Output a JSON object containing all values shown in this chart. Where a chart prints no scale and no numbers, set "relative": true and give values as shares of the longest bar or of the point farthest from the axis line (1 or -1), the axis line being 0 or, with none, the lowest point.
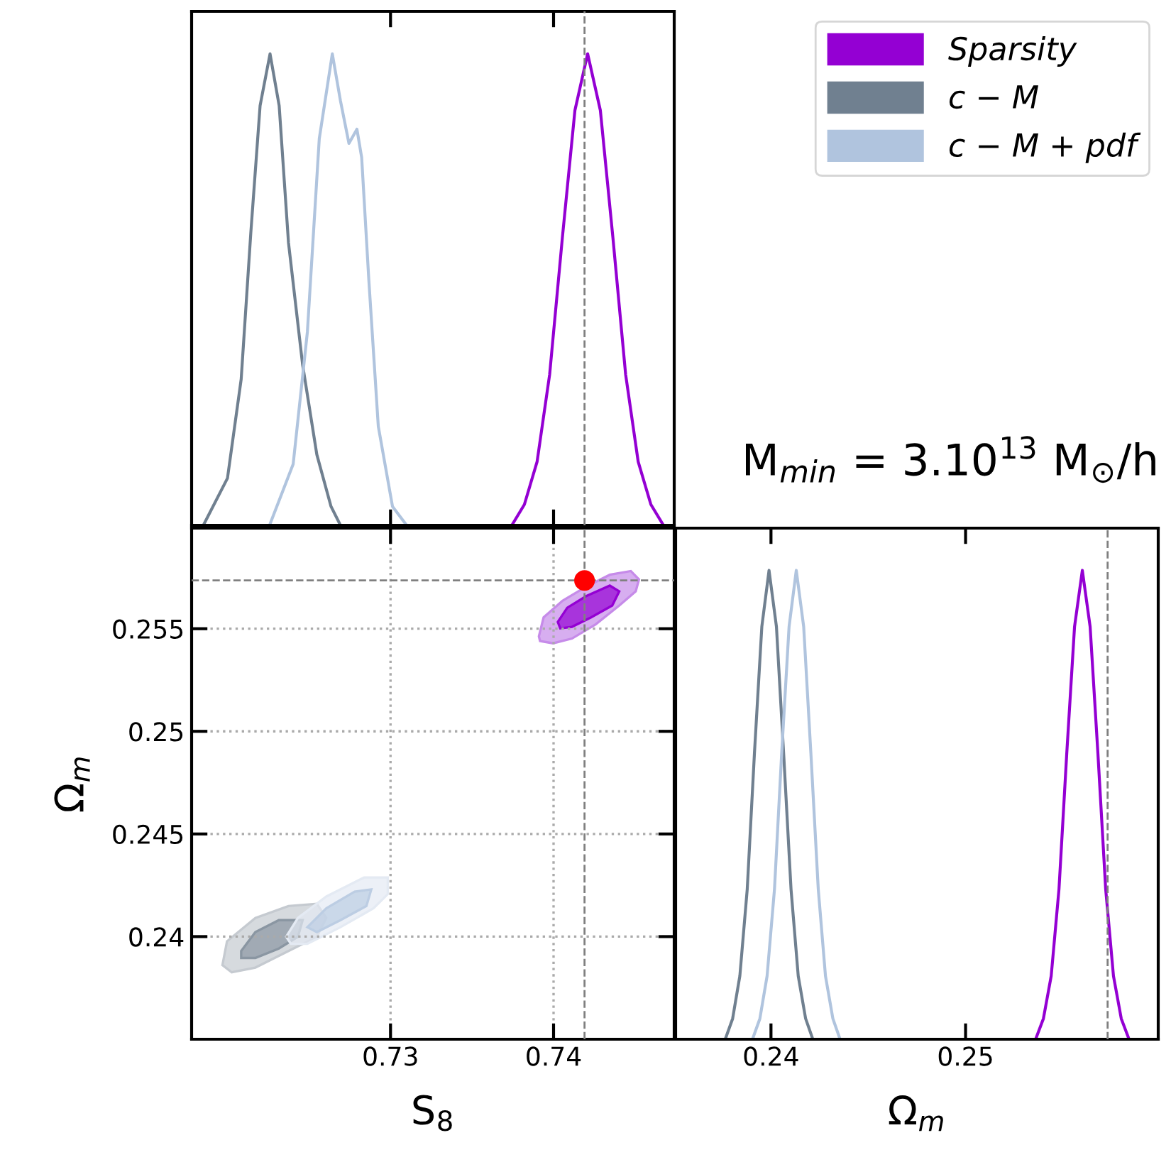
{
  "chart_data": [
    {
      "type": "line",
      "relative": true,
      "xlim": [
        0.7178,
        0.7474
      ],
      "xticks": [
        0.73,
        0.74
      ],
      "tick_labels": false,
      "legend": "top right",
      "annotations": [
        "M$_{min}$ = 3.10$^{13}$ M$_{⊙}$/h"
      ],
      "ref_lines": [
        {
          "axis": "x",
          "value": 0.7419,
          "color": "#808080",
          "line_style": "dashed"
        }
      ],
      "series": [
        {
          "name": "Sparsity",
          "color": "#9400d3",
          "x": [
            0.73744,
            0.73821,
            0.73899,
            0.73976,
            0.74054,
            0.74131,
            0.74209,
            0.74287,
            0.74364,
            0.74442,
            0.74519,
            0.74597,
            0.74674
          ],
          "values": [
            0,
            0.044,
            0.135,
            0.32,
            0.61,
            0.88,
            1,
            0.88,
            0.61,
            0.32,
            0.135,
            0.044,
            0
          ]
        },
        {
          "name": "c − M",
          "color": "#708090",
          "x": [
            0.71852,
            0.72,
            0.72084,
            0.72143,
            0.722,
            0.72261,
            0.72317,
            0.72374,
            0.72461,
            0.72548,
            0.72635,
            0.72693
          ],
          "values": [
            0,
            0.1,
            0.31,
            0.62,
            0.89,
            1,
            0.89,
            0.6,
            0.34,
            0.15,
            0.04,
            0
          ]
        },
        {
          "name": "c − M + pdf",
          "color": "#b0c4de",
          "x": [
            0.72258,
            0.72403,
            0.7249,
            0.72563,
            0.72643,
            0.72693,
            0.72745,
            0.72794,
            0.72823,
            0.72867,
            0.72925,
            0.73012,
            0.73099
          ],
          "values": [
            0,
            0.13,
            0.41,
            0.82,
            1,
            0.9,
            0.81,
            0.84,
            0.78,
            0.52,
            0.21,
            0.04,
            0
          ]
        }
      ]
    },
    {
      "type": "area",
      "xlim": [
        0.7178,
        0.7474
      ],
      "xticks": [
        0.73,
        0.74
      ],
      "ylim": [
        0.235,
        0.2599
      ],
      "yticks": [
        0.24,
        0.245,
        0.25,
        0.255
      ],
      "xlabel": "S$_{8}$",
      "ylabel": "Ω$_{m}$",
      "grid": true,
      "ref_lines": [
        {
          "axis": "x",
          "value": 0.7419,
          "color": "#808080",
          "line_style": "dashed"
        },
        {
          "axis": "y",
          "value": 0.25735,
          "color": "#808080",
          "line_style": "dashed"
        }
      ],
      "series": [
        {
          "color": "#c68be9",
          "x": [
            0.7391,
            0.73939,
            0.74055,
            0.742,
            0.74345,
            0.74474,
            0.74524,
            0.74504,
            0.74403,
            0.74258,
            0.74113,
            0.73997,
            0.73917
          ],
          "values": [
            0.25463,
            0.25555,
            0.25636,
            0.25705,
            0.25763,
            0.25781,
            0.2574,
            0.25682,
            0.25613,
            0.25521,
            0.25452,
            0.25429,
            0.2544
          ]
        },
        {
          "color": "#9400d3",
          "x": [
            0.74026,
            0.74084,
            0.742,
            0.74345,
            0.74403,
            0.7436,
            0.7423,
            0.74113,
            0.74041
          ],
          "values": [
            0.25533,
            0.25602,
            0.25659,
            0.2571,
            0.25682,
            0.25613,
            0.25555,
            0.25509,
            0.25502
          ]
        },
        {
          "color": "#c5cad0",
          "x": [
            0.71969,
            0.71997,
            0.72171,
            0.72374,
            0.72548,
            0.72606,
            0.72548,
            0.72374,
            0.72171,
            0.72026
          ],
          "values": [
            0.23861,
            0.23977,
            0.24091,
            0.24149,
            0.2416,
            0.24091,
            0.23999,
            0.2393,
            0.23849,
            0.23826
          ]
        },
        {
          "color": "#8a96a2",
          "x": [
            0.72084,
            0.72171,
            0.72315,
            0.72461,
            0.72432,
            0.72315,
            0.72171,
            0.72084
          ],
          "values": [
            0.2393,
            0.24022,
            0.2408,
            0.2408,
            0.23999,
            0.23942,
            0.23896,
            0.23896
          ]
        },
        {
          "color": "#e4eaf3",
          "x": [
            0.7236,
            0.72432,
            0.72606,
            0.72838,
            0.72983,
            0.72983,
            0.72896,
            0.72693,
            0.7249,
            0.72389
          ],
          "values": [
            0.23999,
            0.24091,
            0.24195,
            0.24288,
            0.24288,
            0.24207,
            0.24138,
            0.24046,
            0.23965,
            0.23965
          ]
        },
        {
          "color": "#bccde3",
          "x": [
            0.7249,
            0.72606,
            0.7278,
            0.72882,
            0.72852,
            0.72693,
            0.72548
          ],
          "values": [
            0.24046,
            0.24138,
            0.24219,
            0.2423,
            0.24149,
            0.2408,
            0.24022
          ]
        },
        {
          "type": "scatter",
          "color": "#ff0000",
          "marker": "circle",
          "x": [
            0.7419
          ],
          "values": [
            0.25735
          ]
        }
      ]
    },
    {
      "type": "line",
      "relative": true,
      "xlim": [
        0.2351,
        0.2599
      ],
      "xticks": [
        0.24,
        0.25
      ],
      "xlabel": "Ω$_{m}$",
      "tick_labels": "x",
      "ref_lines": [
        {
          "axis": "x",
          "value": 0.2573,
          "color": "#808080",
          "line_style": "dashed"
        }
      ],
      "series": [
        {
          "color": "#9400d3",
          "x": [
            0.2536,
            0.254,
            0.2544,
            0.2548,
            0.2552,
            0.2556,
            0.256,
            0.2564,
            0.2568,
            0.2572,
            0.2576,
            0.258,
            0.2584
          ],
          "values": [
            0,
            0.044,
            0.135,
            0.32,
            0.61,
            0.88,
            1,
            0.88,
            0.61,
            0.32,
            0.135,
            0.044,
            0
          ]
        },
        {
          "color": "#708090",
          "x": [
            0.23765,
            0.23803,
            0.2384,
            0.23878,
            0.23915,
            0.23953,
            0.2399,
            0.24028,
            0.24065,
            0.24103,
            0.2414,
            0.24178,
            0.24215
          ],
          "values": [
            0,
            0.044,
            0.135,
            0.32,
            0.61,
            0.88,
            1,
            0.88,
            0.61,
            0.32,
            0.135,
            0.044,
            0
          ]
        },
        {
          "color": "#b0c4de",
          "x": [
            0.23905,
            0.23943,
            0.2398,
            0.24018,
            0.24055,
            0.24093,
            0.2413,
            0.24168,
            0.24205,
            0.24243,
            0.2428,
            0.24318,
            0.24355
          ],
          "values": [
            0,
            0.044,
            0.135,
            0.32,
            0.61,
            0.88,
            1,
            0.88,
            0.61,
            0.32,
            0.135,
            0.044,
            0
          ]
        }
      ]
    }
  ]
}
